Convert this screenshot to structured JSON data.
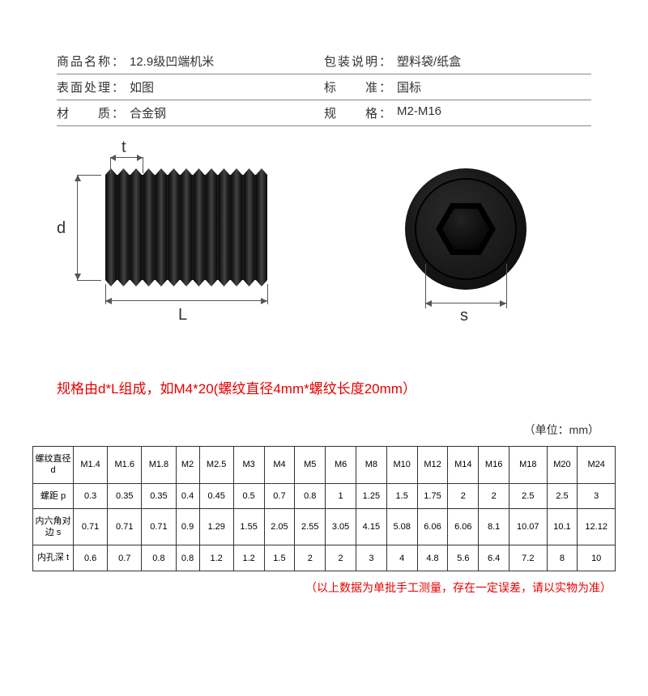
{
  "specs": {
    "rows": [
      {
        "label1": "商品名称：",
        "value1": "12.9级凹端机米",
        "label2": "包装说明：",
        "value2": "塑料袋/纸盒"
      },
      {
        "label1": "表面处理：",
        "value1": "如图",
        "label2": "标　　准：",
        "value2": "国标"
      },
      {
        "label1": "材　　质：",
        "value1": "合金钢",
        "label2": "规　　格：",
        "value2": "M2-M16"
      }
    ]
  },
  "dimensions": {
    "d": "d",
    "L": "L",
    "t": "t",
    "s": "s"
  },
  "red_note": "规格由d*L组成，如M4*20(螺纹直径4mm*螺纹长度20mm）",
  "unit_note": "（单位：mm）",
  "table": {
    "headers": [
      "螺纹直径\nd",
      "M1.4",
      "M1.6",
      "M1.8",
      "M2",
      "M2.5",
      "M3",
      "M4",
      "M5",
      "M6",
      "M8",
      "M10",
      "M12",
      "M14",
      "M16",
      "M18",
      "M20",
      "M24"
    ],
    "rows": [
      [
        "螺距 p",
        "0.3",
        "0.35",
        "0.35",
        "0.4",
        "0.45",
        "0.5",
        "0.7",
        "0.8",
        "1",
        "1.25",
        "1.5",
        "1.75",
        "2",
        "2",
        "2.5",
        "2.5",
        "3"
      ],
      [
        "内六角对\n边 s",
        "0.71",
        "0.71",
        "0.71",
        "0.9",
        "1.29",
        "1.55",
        "2.05",
        "2.55",
        "3.05",
        "4.15",
        "5.08",
        "6.06",
        "6.06",
        "8.1",
        "10.07",
        "10.1",
        "12.12"
      ],
      [
        "内孔深 t",
        "0.6",
        "0.7",
        "0.8",
        "0.8",
        "1.2",
        "1.2",
        "1.5",
        "2",
        "2",
        "3",
        "4",
        "4.8",
        "5.6",
        "6.4",
        "7.2",
        "8",
        "10"
      ]
    ]
  },
  "red_footer": "（以上数据为单批手工测量，存在一定误差，请以实物为准）"
}
